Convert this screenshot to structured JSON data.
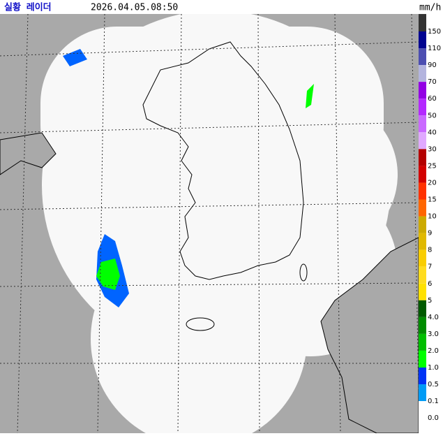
{
  "header": {
    "title": "실황 레이더",
    "time": "2026.04.05.08:50",
    "unit": "mm/h"
  },
  "legend": [
    {
      "label": "150",
      "color": "#333333"
    },
    {
      "label": "110",
      "color": "#000390"
    },
    {
      "label": "90",
      "color": "#4c4eb1"
    },
    {
      "label": "70",
      "color": "#b3b4de"
    },
    {
      "label": "60",
      "color": "#9300e4"
    },
    {
      "label": "50",
      "color": "#b329ff"
    },
    {
      "label": "40",
      "color": "#c969ff"
    },
    {
      "label": "30",
      "color": "#e0a9ff"
    },
    {
      "label": "25",
      "color": "#b40000"
    },
    {
      "label": "20",
      "color": "#d20000"
    },
    {
      "label": "15",
      "color": "#ff3200"
    },
    {
      "label": "10",
      "color": "#ff6600"
    },
    {
      "label": "9",
      "color": "#ccaa00"
    },
    {
      "label": "8",
      "color": "#e0b900"
    },
    {
      "label": "7",
      "color": "#f9cd00"
    },
    {
      "label": "6",
      "color": "#ffdc1f"
    },
    {
      "label": "5",
      "color": "#ffe100"
    },
    {
      "label": "4.0",
      "color": "#005a00"
    },
    {
      "label": "3.0",
      "color": "#008c00"
    },
    {
      "label": "2.0",
      "color": "#00be00"
    },
    {
      "label": "1.0",
      "color": "#00ff00"
    },
    {
      "label": "0.5",
      "color": "#0033f5"
    },
    {
      "label": "0.1",
      "color": "#009bf5"
    },
    {
      "label": "0.0",
      "color": "#ffffff"
    }
  ]
}
